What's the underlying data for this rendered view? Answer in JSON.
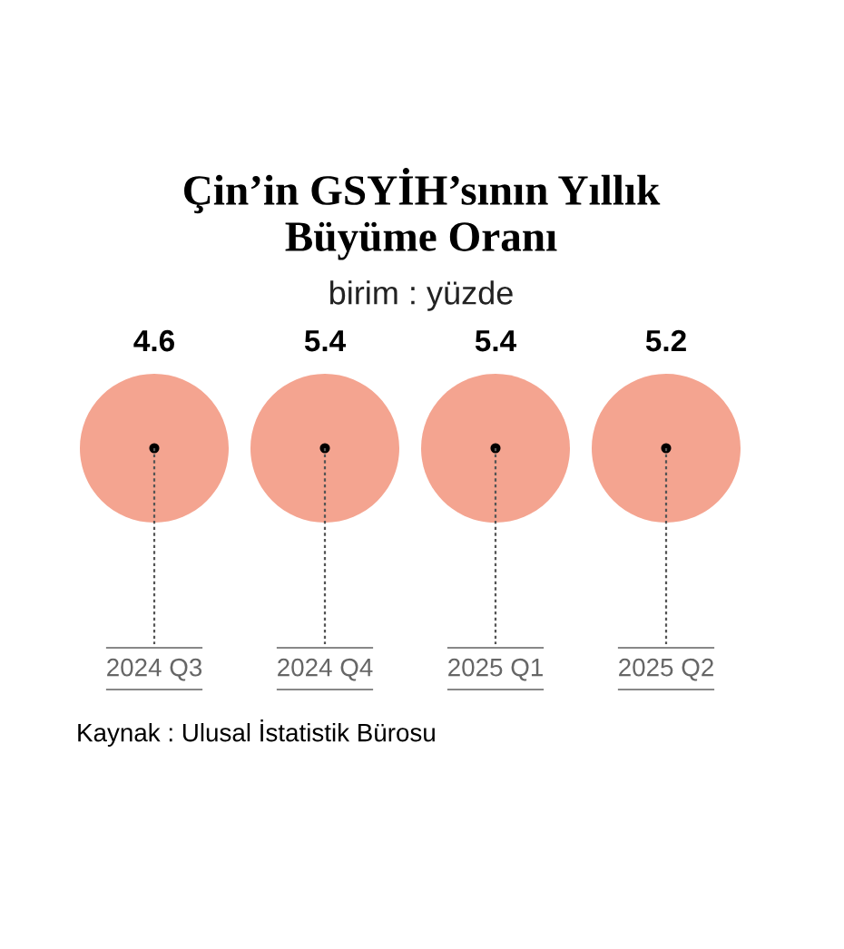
{
  "chart_data": {
    "type": "other",
    "title": "Çin’in GSYİH’sının Yıllık\nBüyüme Oranı",
    "subtitle": "birim : yüzde",
    "categories": [
      "2024 Q3",
      "2024 Q4",
      "2025 Q1",
      "2025 Q2"
    ],
    "values": [
      4.6,
      5.4,
      5.4,
      5.2
    ],
    "color": "#f4a490",
    "data_labels": true,
    "annotations": [
      "Kaynak : Ulusal İstatistik Bürosu"
    ]
  }
}
